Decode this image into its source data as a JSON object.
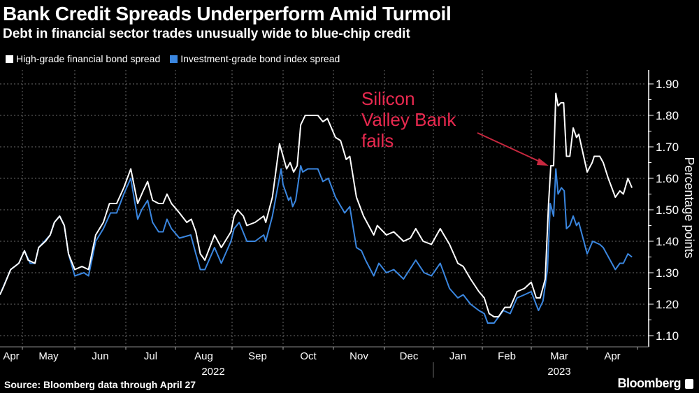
{
  "chart_data": {
    "type": "line",
    "title": "Bank Credit Spreads Underperform Amid Turmoil",
    "subtitle": "Debt in financial sector trades unusually wide to blue-chip credit",
    "xlabel": "",
    "ylabel": "Percentage points",
    "x_units": "months since 2022-04-01 (1 = May 1 2022, 10 = Feb 1 2023)",
    "xlim": [
      0.56,
      12.89
    ],
    "ylim": [
      1.1,
      1.9
    ],
    "yticks": [
      "1.10",
      "1.20",
      "1.30",
      "1.40",
      "1.50",
      "1.60",
      "1.70",
      "1.80",
      "1.90"
    ],
    "ytick_values": [
      1.1,
      1.2,
      1.3,
      1.4,
      1.5,
      1.6,
      1.7,
      1.8,
      1.9
    ],
    "xtick_labels": [
      "Apr",
      "May",
      "Jun",
      "Jul",
      "Aug",
      "Sep",
      "Oct",
      "Nov",
      "Dec",
      "Jan",
      "Feb",
      "Mar",
      "Apr"
    ],
    "year_labels": [
      "2022",
      "2023"
    ],
    "grid": true,
    "legend_placement": "top-left",
    "annotation": {
      "text_lines": [
        "Silicon",
        "Valley Bank",
        "fails"
      ],
      "x": 11.36,
      "y": 1.64
    },
    "series": [
      {
        "name": "High-grade financial bond spread",
        "color": "#ffffff",
        "x": [
          0.56,
          0.63,
          0.77,
          0.93,
          1.04,
          1.11,
          1.24,
          1.31,
          1.44,
          1.53,
          1.61,
          1.71,
          1.8,
          1.88,
          2.0,
          2.14,
          2.27,
          2.41,
          2.56,
          2.68,
          2.82,
          2.96,
          3.1,
          3.24,
          3.35,
          3.44,
          3.54,
          3.66,
          3.75,
          3.83,
          3.92,
          4.07,
          4.2,
          4.28,
          4.36,
          4.44,
          4.52,
          4.69,
          4.81,
          4.98,
          5.04,
          5.11,
          5.22,
          5.29,
          5.45,
          5.62,
          5.66,
          5.79,
          5.93,
          6.0,
          6.07,
          6.14,
          6.21,
          6.28,
          6.35,
          6.44,
          6.58,
          6.69,
          6.79,
          6.88,
          7.04,
          7.14,
          7.25,
          7.32,
          7.45,
          7.59,
          7.79,
          7.86,
          8.04,
          8.19,
          8.39,
          8.53,
          8.64,
          8.79,
          8.96,
          9.14,
          9.33,
          9.5,
          9.61,
          9.76,
          9.93,
          10.04,
          10.14,
          10.24,
          10.33,
          10.46,
          10.57,
          10.71,
          10.86,
          11.0,
          11.09,
          11.16,
          11.25,
          11.31,
          11.35,
          11.4,
          11.44,
          11.48,
          11.53,
          11.58,
          11.63,
          11.69,
          11.75,
          11.81,
          11.85,
          12.0,
          12.1,
          12.14,
          12.25,
          12.32,
          12.42,
          12.56,
          12.65,
          12.72,
          12.81,
          12.89
        ],
        "y": [
          1.23,
          1.255,
          1.31,
          1.33,
          1.37,
          1.34,
          1.33,
          1.38,
          1.4,
          1.42,
          1.46,
          1.48,
          1.45,
          1.36,
          1.31,
          1.32,
          1.31,
          1.42,
          1.46,
          1.52,
          1.52,
          1.57,
          1.63,
          1.52,
          1.56,
          1.59,
          1.53,
          1.52,
          1.52,
          1.55,
          1.52,
          1.49,
          1.46,
          1.47,
          1.43,
          1.36,
          1.34,
          1.42,
          1.38,
          1.43,
          1.48,
          1.5,
          1.48,
          1.45,
          1.46,
          1.48,
          1.46,
          1.54,
          1.71,
          1.67,
          1.63,
          1.65,
          1.62,
          1.64,
          1.77,
          1.8,
          1.8,
          1.8,
          1.78,
          1.79,
          1.73,
          1.72,
          1.66,
          1.67,
          1.54,
          1.48,
          1.42,
          1.45,
          1.42,
          1.43,
          1.4,
          1.41,
          1.44,
          1.4,
          1.39,
          1.44,
          1.39,
          1.33,
          1.32,
          1.28,
          1.24,
          1.22,
          1.17,
          1.16,
          1.16,
          1.19,
          1.19,
          1.24,
          1.25,
          1.27,
          1.22,
          1.22,
          1.28,
          1.52,
          1.64,
          1.64,
          1.87,
          1.83,
          1.84,
          1.84,
          1.67,
          1.67,
          1.76,
          1.73,
          1.74,
          1.62,
          1.65,
          1.67,
          1.67,
          1.65,
          1.6,
          1.54,
          1.56,
          1.55,
          1.6,
          1.57
        ]
      },
      {
        "name": "Investment-grade bond index spread",
        "color": "#3a86df",
        "x": [
          0.56,
          0.77,
          0.93,
          1.04,
          1.15,
          1.24,
          1.31,
          1.53,
          1.61,
          1.71,
          1.8,
          1.88,
          2.0,
          2.18,
          2.27,
          2.41,
          2.56,
          2.7,
          2.82,
          2.96,
          3.1,
          3.24,
          3.32,
          3.44,
          3.54,
          3.66,
          3.75,
          3.83,
          3.92,
          4.07,
          4.27,
          4.36,
          4.44,
          4.52,
          4.69,
          4.81,
          4.98,
          5.04,
          5.14,
          5.29,
          5.45,
          5.62,
          5.66,
          5.79,
          5.96,
          6.0,
          6.11,
          6.15,
          6.19,
          6.25,
          6.35,
          6.39,
          6.49,
          6.69,
          6.79,
          6.9,
          7.04,
          7.22,
          7.32,
          7.45,
          7.55,
          7.63,
          7.79,
          7.89,
          8.04,
          8.19,
          8.39,
          8.64,
          8.81,
          8.96,
          9.14,
          9.33,
          9.5,
          9.61,
          9.76,
          9.93,
          10.04,
          10.11,
          10.24,
          10.43,
          10.57,
          10.71,
          10.86,
          11.0,
          11.13,
          11.21,
          11.29,
          11.34,
          11.4,
          11.44,
          11.48,
          11.54,
          11.59,
          11.63,
          11.69,
          11.75,
          11.81,
          11.85,
          12.0,
          12.11,
          12.25,
          12.32,
          12.56,
          12.65,
          12.72,
          12.81,
          12.89
        ],
        "y": [
          1.23,
          1.31,
          1.33,
          1.37,
          1.33,
          1.33,
          1.38,
          1.42,
          1.46,
          1.48,
          1.45,
          1.36,
          1.29,
          1.3,
          1.29,
          1.4,
          1.44,
          1.49,
          1.49,
          1.55,
          1.6,
          1.47,
          1.5,
          1.53,
          1.46,
          1.43,
          1.43,
          1.47,
          1.44,
          1.41,
          1.42,
          1.36,
          1.31,
          1.31,
          1.38,
          1.33,
          1.4,
          1.44,
          1.46,
          1.4,
          1.4,
          1.42,
          1.4,
          1.48,
          1.63,
          1.58,
          1.53,
          1.54,
          1.51,
          1.53,
          1.64,
          1.62,
          1.63,
          1.63,
          1.59,
          1.6,
          1.54,
          1.49,
          1.51,
          1.38,
          1.37,
          1.34,
          1.29,
          1.33,
          1.3,
          1.31,
          1.28,
          1.34,
          1.3,
          1.29,
          1.33,
          1.25,
          1.22,
          1.23,
          1.2,
          1.18,
          1.17,
          1.14,
          1.14,
          1.18,
          1.17,
          1.22,
          1.23,
          1.24,
          1.18,
          1.21,
          1.31,
          1.52,
          1.48,
          1.63,
          1.55,
          1.57,
          1.56,
          1.44,
          1.45,
          1.48,
          1.45,
          1.46,
          1.36,
          1.4,
          1.39,
          1.38,
          1.31,
          1.33,
          1.33,
          1.36,
          1.35
        ]
      }
    ]
  },
  "footer": {
    "source": "Source: Bloomberg data through April 27",
    "brand": "Bloomberg"
  }
}
